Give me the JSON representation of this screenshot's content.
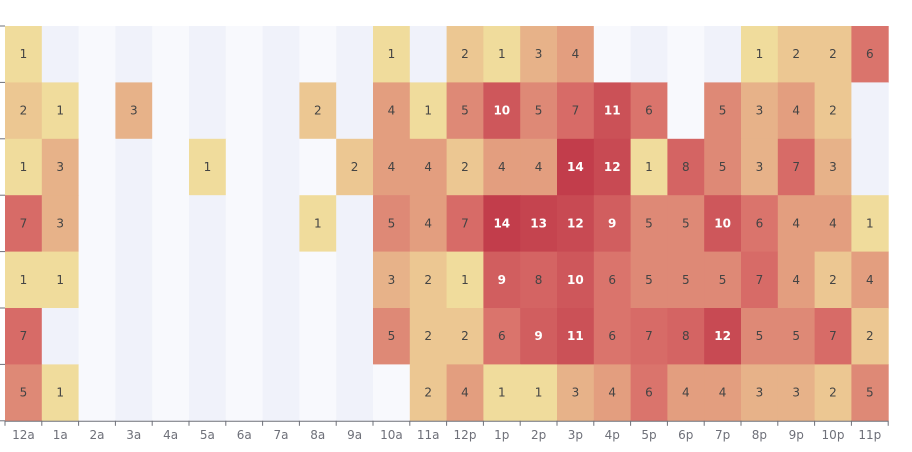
{
  "chart_data": {
    "type": "heatmap",
    "x_categories": [
      "12a",
      "1a",
      "2a",
      "3a",
      "4a",
      "5a",
      "6a",
      "7a",
      "8a",
      "9a",
      "10a",
      "11a",
      "12p",
      "1p",
      "2p",
      "3p",
      "4p",
      "5p",
      "6p",
      "7p",
      "8p",
      "9p",
      "10p",
      "11p"
    ],
    "row_count": 7,
    "values": [
      [
        1,
        null,
        null,
        null,
        null,
        null,
        null,
        null,
        null,
        null,
        1,
        null,
        2,
        1,
        3,
        4,
        null,
        null,
        null,
        null,
        1,
        2,
        2,
        6
      ],
      [
        2,
        1,
        null,
        3,
        null,
        null,
        null,
        null,
        2,
        null,
        4,
        1,
        5,
        10,
        5,
        7,
        11,
        6,
        null,
        5,
        3,
        4,
        2,
        null
      ],
      [
        1,
        3,
        null,
        null,
        null,
        1,
        null,
        null,
        null,
        2,
        4,
        4,
        2,
        4,
        4,
        14,
        12,
        1,
        8,
        5,
        3,
        7,
        3,
        null
      ],
      [
        7,
        3,
        null,
        null,
        null,
        null,
        null,
        null,
        1,
        null,
        5,
        4,
        7,
        14,
        13,
        12,
        9,
        5,
        5,
        10,
        6,
        4,
        4,
        1
      ],
      [
        1,
        1,
        null,
        null,
        null,
        null,
        null,
        null,
        null,
        null,
        3,
        2,
        1,
        9,
        8,
        10,
        6,
        5,
        5,
        5,
        7,
        4,
        2,
        4
      ],
      [
        7,
        null,
        null,
        null,
        null,
        null,
        null,
        null,
        null,
        null,
        5,
        2,
        2,
        6,
        9,
        11,
        6,
        7,
        8,
        12,
        5,
        5,
        7,
        2
      ],
      [
        5,
        1,
        null,
        null,
        null,
        null,
        null,
        null,
        null,
        null,
        null,
        2,
        4,
        1,
        1,
        3,
        4,
        6,
        4,
        4,
        3,
        3,
        2,
        5
      ]
    ],
    "value_range": [
      1,
      14
    ],
    "colors": {
      "low": "#f0dc9c",
      "mid": "#d9706a",
      "high": "#c23d4b",
      "empty_even": "#f8f9fd",
      "empty_odd": "#f0f2fa",
      "label_light": "#ffffff",
      "label_dark": "#444444",
      "axis": "#6e7079"
    }
  }
}
